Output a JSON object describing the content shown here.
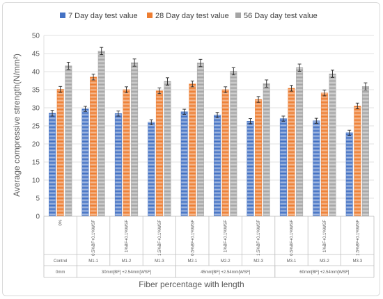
{
  "chart_data": {
    "type": "bar",
    "title": "",
    "xlabel": "Fiber percentage with length",
    "ylabel": "Average compressive strength(N/mm²)",
    "ylim": [
      0,
      50
    ],
    "ytick_step": 5,
    "grid": true,
    "legend_position": "top",
    "categories": [
      "0%",
      "0.5%BF+0.1%WSF",
      "1%BF+0.1%WSF",
      "1.5%BF+0.1%WSF",
      "0.5%BF+0.1%WSF",
      "1%BF+0.1%WSF",
      "1.5%BF+0.1%WSF",
      "0.5%BF+0.1%WSF",
      "1%BF+0.1%WSF",
      "1.5%BF+0.1%WSF"
    ],
    "mix_ids": [
      "Control",
      "M1-1",
      "M1-2",
      "M1-3",
      "M2-1",
      "M2-2",
      "M2-3",
      "M3-1",
      "M3-2",
      "M3-3"
    ],
    "groups": [
      {
        "label": "0mm",
        "span": 1
      },
      {
        "label": "30mm[BF] +2.54mm[WSF]",
        "span": 3
      },
      {
        "label": "45mm[BF] +2.54mm[WSF]",
        "span": 3
      },
      {
        "label": "60mm[BF] +2.54mm[WSF]",
        "span": 3
      }
    ],
    "series": [
      {
        "name": "7 Day day test value",
        "color": "#4472c4",
        "values": [
          28.5,
          29.7,
          28.4,
          26.0,
          28.9,
          28.0,
          26.3,
          27.0,
          26.4,
          23.1
        ],
        "errors": [
          0.8,
          0.7,
          0.7,
          0.7,
          0.7,
          0.7,
          0.7,
          0.7,
          0.7,
          0.7
        ]
      },
      {
        "name": "28 Day day test value",
        "color": "#ed7d31",
        "values": [
          35.1,
          38.5,
          35.0,
          34.7,
          36.6,
          35.0,
          32.3,
          35.4,
          34.1,
          30.5
        ],
        "errors": [
          0.8,
          0.8,
          0.8,
          0.8,
          0.8,
          0.8,
          0.8,
          0.8,
          0.8,
          0.8
        ]
      },
      {
        "name": "56 Day day test value",
        "color": "#a5a5a5",
        "values": [
          41.6,
          45.7,
          42.5,
          37.3,
          42.4,
          40.1,
          36.7,
          41.1,
          39.4,
          35.9
        ],
        "errors": [
          1.0,
          1.0,
          1.0,
          1.0,
          1.0,
          1.0,
          1.0,
          1.0,
          1.0,
          1.0
        ]
      }
    ]
  }
}
